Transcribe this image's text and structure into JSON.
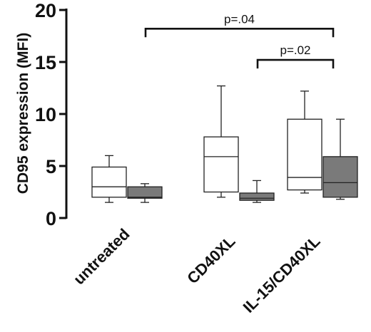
{
  "chart_data": {
    "type": "box",
    "title": "",
    "xlabel": "",
    "ylabel": "CD95 expression (MFI)",
    "ylim": [
      0,
      20
    ],
    "yticks": [
      0,
      5,
      10,
      15,
      20
    ],
    "grid": false,
    "categories": [
      "untreated",
      "CD40XL",
      "IL-15/CD40XL"
    ],
    "series": [
      {
        "fill": "#ffffff",
        "boxes": [
          {
            "min": 1.5,
            "q1": 2.0,
            "median": 3.0,
            "q3": 4.9,
            "max": 6.0
          },
          {
            "min": 2.0,
            "q1": 2.5,
            "median": 5.9,
            "q3": 7.8,
            "max": 12.7
          },
          {
            "min": 2.4,
            "q1": 2.7,
            "median": 3.9,
            "q3": 9.5,
            "max": 12.2
          }
        ]
      },
      {
        "fill": "#7a7a7a",
        "boxes": [
          {
            "min": 1.5,
            "q1": 1.9,
            "median": 2.0,
            "q3": 3.0,
            "max": 3.3
          },
          {
            "min": 1.5,
            "q1": 1.7,
            "median": 1.9,
            "q3": 2.4,
            "max": 3.6
          },
          {
            "min": 1.8,
            "q1": 2.0,
            "median": 3.4,
            "q3": 5.9,
            "max": 9.5
          }
        ]
      }
    ],
    "annotations": [
      {
        "text": "p=.04",
        "from_category": 0,
        "to_category": 2,
        "y": 18.2
      },
      {
        "text": "p=.02",
        "from_category": 1,
        "to_category": 2,
        "y": 15.2
      }
    ]
  }
}
